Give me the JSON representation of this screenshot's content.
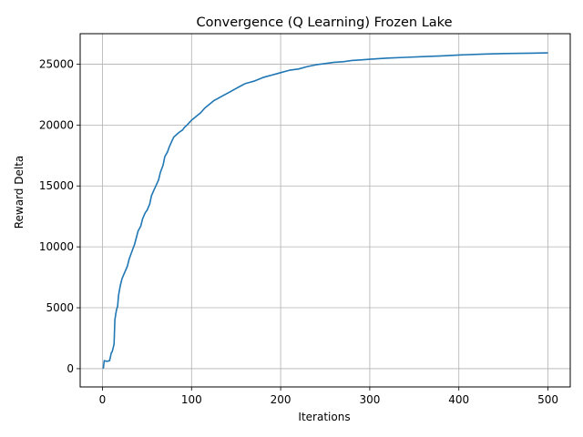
{
  "chart_data": {
    "type": "line",
    "title": "Convergence (Q Learning) Frozen Lake",
    "xlabel": "Iterations",
    "ylabel": "Reward Delta",
    "xlim": [
      -25,
      525
    ],
    "ylim": [
      -1500,
      27500
    ],
    "xticks": [
      0,
      100,
      200,
      300,
      400,
      500
    ],
    "yticks": [
      0,
      5000,
      10000,
      15000,
      20000,
      25000
    ],
    "grid": true,
    "line_color": "#1f77b4",
    "series": [
      {
        "x": [
          1,
          2,
          5,
          8,
          10,
          11,
          13,
          14,
          15,
          16,
          17,
          18,
          20,
          22,
          25,
          28,
          30,
          33,
          36,
          40,
          43,
          45,
          48,
          50,
          53,
          55,
          58,
          60,
          63,
          65,
          68,
          70,
          73,
          75,
          78,
          80,
          83,
          86,
          90,
          92,
          95,
          100,
          105,
          110,
          115,
          120,
          125,
          130,
          135,
          140,
          145,
          150,
          155,
          160,
          165,
          170,
          175,
          180,
          185,
          190,
          195,
          200,
          210,
          220,
          230,
          240,
          250,
          260,
          270,
          280,
          290,
          300,
          320,
          340,
          360,
          380,
          400,
          420,
          440,
          460,
          480,
          500
        ],
        "y": [
          0,
          650,
          600,
          650,
          1300,
          1400,
          2000,
          4000,
          4500,
          4900,
          5100,
          6000,
          6800,
          7400,
          7900,
          8400,
          9000,
          9600,
          10200,
          11300,
          11700,
          12300,
          12800,
          13000,
          13500,
          14200,
          14700,
          15000,
          15500,
          16100,
          16700,
          17400,
          17800,
          18200,
          18700,
          19000,
          19200,
          19400,
          19600,
          19800,
          20000,
          20400,
          20700,
          21000,
          21400,
          21700,
          22000,
          22200,
          22400,
          22600,
          22800,
          23000,
          23200,
          23400,
          23500,
          23600,
          23750,
          23900,
          24000,
          24100,
          24200,
          24300,
          24500,
          24600,
          24800,
          24950,
          25050,
          25150,
          25200,
          25300,
          25350,
          25400,
          25500,
          25560,
          25620,
          25680,
          25750,
          25800,
          25850,
          25880,
          25900,
          25920
        ]
      }
    ]
  }
}
